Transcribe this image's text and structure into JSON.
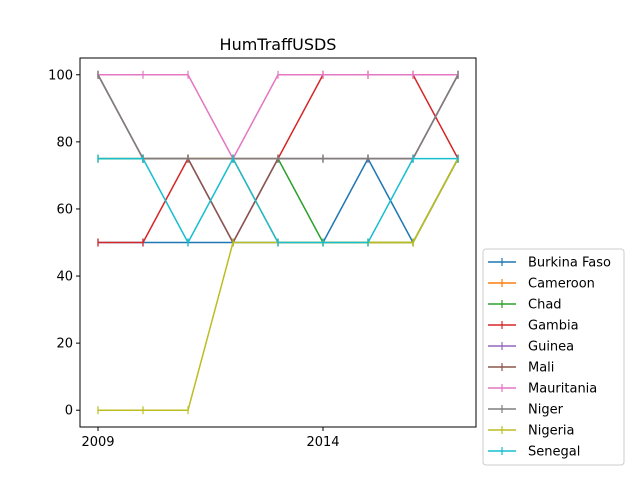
{
  "chart_data": {
    "type": "line",
    "title": "HumTraffUSDS",
    "xlabel": "",
    "ylabel": "",
    "x": [
      2009,
      2010,
      2011,
      2012,
      2013,
      2014,
      2015,
      2016,
      2017
    ],
    "xticks": [
      2009,
      2014
    ],
    "xtick_labels": [
      "2009",
      "2014"
    ],
    "xlim": [
      2008.6,
      2017.4
    ],
    "yticks": [
      0,
      20,
      40,
      60,
      80,
      100
    ],
    "ytick_labels": [
      "0",
      "20",
      "40",
      "60",
      "80",
      "100"
    ],
    "ylim": [
      -5,
      105
    ],
    "grid": false,
    "legend_position": "outside-right-bottom",
    "marker": "vertical-tick",
    "series": [
      {
        "name": "Burkina Faso",
        "color": "#1f77b4",
        "values": [
          50,
          50,
          50,
          50,
          50,
          50,
          75,
          50,
          75
        ]
      },
      {
        "name": "Cameroon",
        "color": "#ff7f0e",
        "values": [
          75,
          75,
          75,
          75,
          50,
          50,
          50,
          50,
          75
        ]
      },
      {
        "name": "Chad",
        "color": "#2ca02c",
        "values": [
          75,
          75,
          75,
          75,
          75,
          50,
          50,
          50,
          75
        ]
      },
      {
        "name": "Gambia",
        "color": "#d62728",
        "values": [
          50,
          50,
          75,
          75,
          75,
          100,
          100,
          100,
          75
        ]
      },
      {
        "name": "Guinea",
        "color": "#9467bd",
        "values": [
          100,
          75,
          75,
          50,
          75,
          75,
          75,
          75,
          100
        ]
      },
      {
        "name": "Mali",
        "color": "#8c564b",
        "values": [
          100,
          75,
          75,
          50,
          75,
          75,
          75,
          75,
          100
        ]
      },
      {
        "name": "Mauritania",
        "color": "#e377c2",
        "values": [
          100,
          100,
          100,
          75,
          100,
          100,
          100,
          100,
          100
        ]
      },
      {
        "name": "Niger",
        "color": "#7f7f7f",
        "values": [
          100,
          75,
          75,
          75,
          75,
          75,
          75,
          75,
          100
        ]
      },
      {
        "name": "Nigeria",
        "color": "#bcbd22",
        "values": [
          0,
          0,
          0,
          50,
          50,
          50,
          50,
          50,
          75
        ]
      },
      {
        "name": "Senegal",
        "color": "#17becf",
        "values": [
          75,
          75,
          50,
          75,
          50,
          50,
          50,
          75,
          75
        ]
      }
    ]
  }
}
